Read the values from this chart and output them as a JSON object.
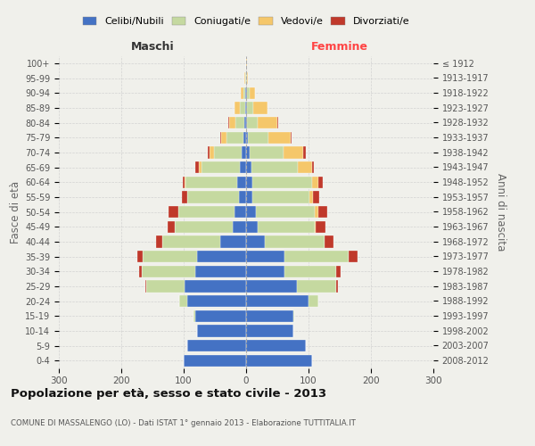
{
  "age_groups": [
    "0-4",
    "5-9",
    "10-14",
    "15-19",
    "20-24",
    "25-29",
    "30-34",
    "35-39",
    "40-44",
    "45-49",
    "50-54",
    "55-59",
    "60-64",
    "65-69",
    "70-74",
    "75-79",
    "80-84",
    "85-89",
    "90-94",
    "95-99",
    "100+"
  ],
  "birth_years": [
    "2008-2012",
    "2003-2007",
    "1998-2002",
    "1993-1997",
    "1988-1992",
    "1983-1987",
    "1978-1982",
    "1973-1977",
    "1968-1972",
    "1963-1967",
    "1958-1962",
    "1953-1957",
    "1948-1952",
    "1943-1947",
    "1938-1942",
    "1933-1937",
    "1928-1932",
    "1923-1927",
    "1918-1922",
    "1913-1917",
    "≤ 1912"
  ],
  "male_celibi": [
    100,
    95,
    78,
    82,
    95,
    98,
    82,
    78,
    42,
    22,
    18,
    12,
    15,
    10,
    7,
    4,
    3,
    2,
    2,
    0,
    0
  ],
  "male_coniugati": [
    0,
    0,
    0,
    2,
    12,
    62,
    85,
    88,
    92,
    92,
    90,
    82,
    82,
    62,
    45,
    28,
    14,
    8,
    3,
    2,
    0
  ],
  "male_vedovi": [
    0,
    0,
    0,
    0,
    0,
    0,
    0,
    0,
    0,
    0,
    1,
    1,
    2,
    4,
    6,
    8,
    10,
    8,
    4,
    1,
    0
  ],
  "male_divorziati": [
    0,
    0,
    0,
    0,
    0,
    2,
    5,
    8,
    10,
    12,
    15,
    8,
    3,
    5,
    3,
    2,
    1,
    0,
    0,
    0,
    0
  ],
  "female_celibi": [
    105,
    95,
    75,
    75,
    100,
    82,
    62,
    62,
    30,
    18,
    15,
    10,
    10,
    8,
    5,
    3,
    2,
    2,
    2,
    0,
    0
  ],
  "female_coniugati": [
    0,
    0,
    0,
    2,
    15,
    62,
    82,
    102,
    95,
    92,
    95,
    92,
    95,
    75,
    55,
    32,
    16,
    10,
    4,
    1,
    0
  ],
  "female_vedovi": [
    0,
    0,
    0,
    0,
    0,
    0,
    0,
    0,
    0,
    2,
    5,
    5,
    10,
    22,
    32,
    36,
    32,
    22,
    8,
    2,
    1
  ],
  "female_divorziati": [
    0,
    0,
    0,
    0,
    0,
    3,
    8,
    15,
    15,
    15,
    15,
    10,
    8,
    3,
    3,
    2,
    1,
    0,
    0,
    0,
    0
  ],
  "color_celibi": "#4472c4",
  "color_coniugati": "#c5d9a0",
  "color_vedovi": "#f5c76a",
  "color_divorziati": "#c0392b",
  "title": "Popolazione per età, sesso e stato civile - 2013",
  "subtitle": "COMUNE DI MASSALENGO (LO) - Dati ISTAT 1° gennaio 2013 - Elaborazione TUTTITALIA.IT",
  "label_maschi": "Maschi",
  "label_femmine": "Femmine",
  "ylabel_left": "Fasce di età",
  "ylabel_right": "Anni di nascita",
  "legend_labels": [
    "Celibi/Nubili",
    "Coniugati/e",
    "Vedovi/e",
    "Divorziati/e"
  ],
  "xlim": 300,
  "bg_color": "#f0f0eb",
  "grid_color": "#cccccc"
}
